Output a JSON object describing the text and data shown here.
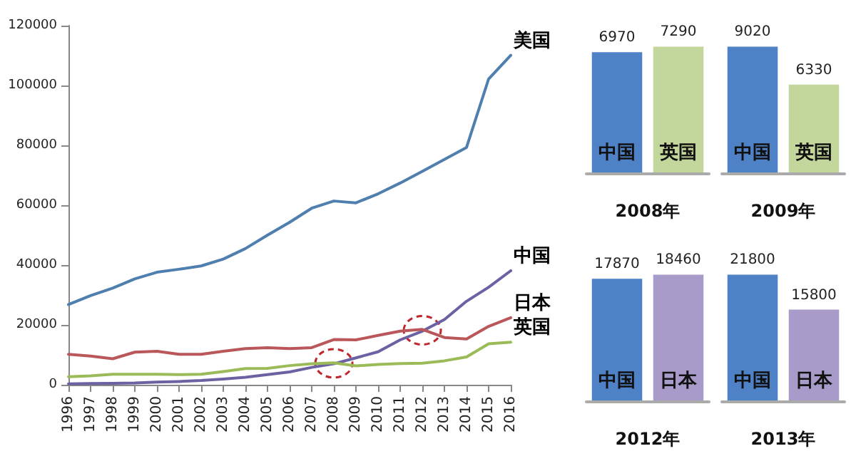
{
  "chart_data": [
    {
      "type": "line",
      "categories": [
        "1996",
        "1997",
        "1998",
        "1999",
        "2000",
        "2001",
        "2002",
        "2003",
        "2004",
        "2005",
        "2006",
        "2007",
        "2008",
        "2009",
        "2010",
        "2011",
        "2012",
        "2013",
        "2014",
        "2015",
        "2016"
      ],
      "series": [
        {
          "name": "美国",
          "color": "#4f7fae",
          "values": [
            26800,
            29800,
            32300,
            35400,
            37600,
            38600,
            39700,
            42000,
            45500,
            50000,
            54300,
            59000,
            61400,
            60800,
            63800,
            67400,
            71300,
            75300,
            79300,
            102200,
            110100
          ]
        },
        {
          "name": "中国",
          "color": "#6c62a3",
          "values": [
            300,
            400,
            500,
            600,
            900,
            1100,
            1400,
            1900,
            2500,
            3400,
            4300,
            5800,
            7000,
            9000,
            11000,
            15000,
            17900,
            21800,
            27900,
            32600,
            38100
          ]
        },
        {
          "name": "日本",
          "color": "#b9575a",
          "values": [
            10200,
            9600,
            8700,
            10900,
            11200,
            10200,
            10200,
            11200,
            12100,
            12400,
            12100,
            12400,
            15100,
            15000,
            16500,
            17900,
            18500,
            15800,
            15300,
            19500,
            22400
          ]
        },
        {
          "name": "英国",
          "color": "#9bbb59",
          "values": [
            2700,
            3000,
            3500,
            3500,
            3500,
            3400,
            3500,
            4400,
            5400,
            5500,
            6400,
            7000,
            7300,
            6300,
            6800,
            7100,
            7200,
            8000,
            9300,
            13700,
            14200
          ]
        }
      ],
      "ylim": [
        0,
        120000
      ],
      "yticks": [
        0,
        20000,
        40000,
        60000,
        80000,
        100000,
        120000
      ],
      "grid": false,
      "legend": false,
      "marker": "none",
      "line_style": "solid"
    },
    {
      "type": "bar",
      "xlabel": "2008年",
      "categories": [
        "中国",
        "英国"
      ],
      "values": [
        6970,
        7290
      ],
      "colors": [
        "#4f81c7",
        "#c3d69b"
      ],
      "data_labels": true
    },
    {
      "type": "bar",
      "xlabel": "2009年",
      "categories": [
        "中国",
        "英国"
      ],
      "values": [
        9020,
        6330
      ],
      "colors": [
        "#4f81c7",
        "#c3d69b"
      ],
      "data_labels": true
    },
    {
      "type": "bar",
      "xlabel": "2012年",
      "categories": [
        "中国",
        "日本"
      ],
      "values": [
        17870,
        18460
      ],
      "colors": [
        "#4f81c7",
        "#a99bc9"
      ],
      "data_labels": true
    },
    {
      "type": "bar",
      "xlabel": "2013年",
      "categories": [
        "中国",
        "日本"
      ],
      "values": [
        21800,
        15800
      ],
      "colors": [
        "#4f81c7",
        "#a99bc9"
      ],
      "data_labels": true
    }
  ]
}
